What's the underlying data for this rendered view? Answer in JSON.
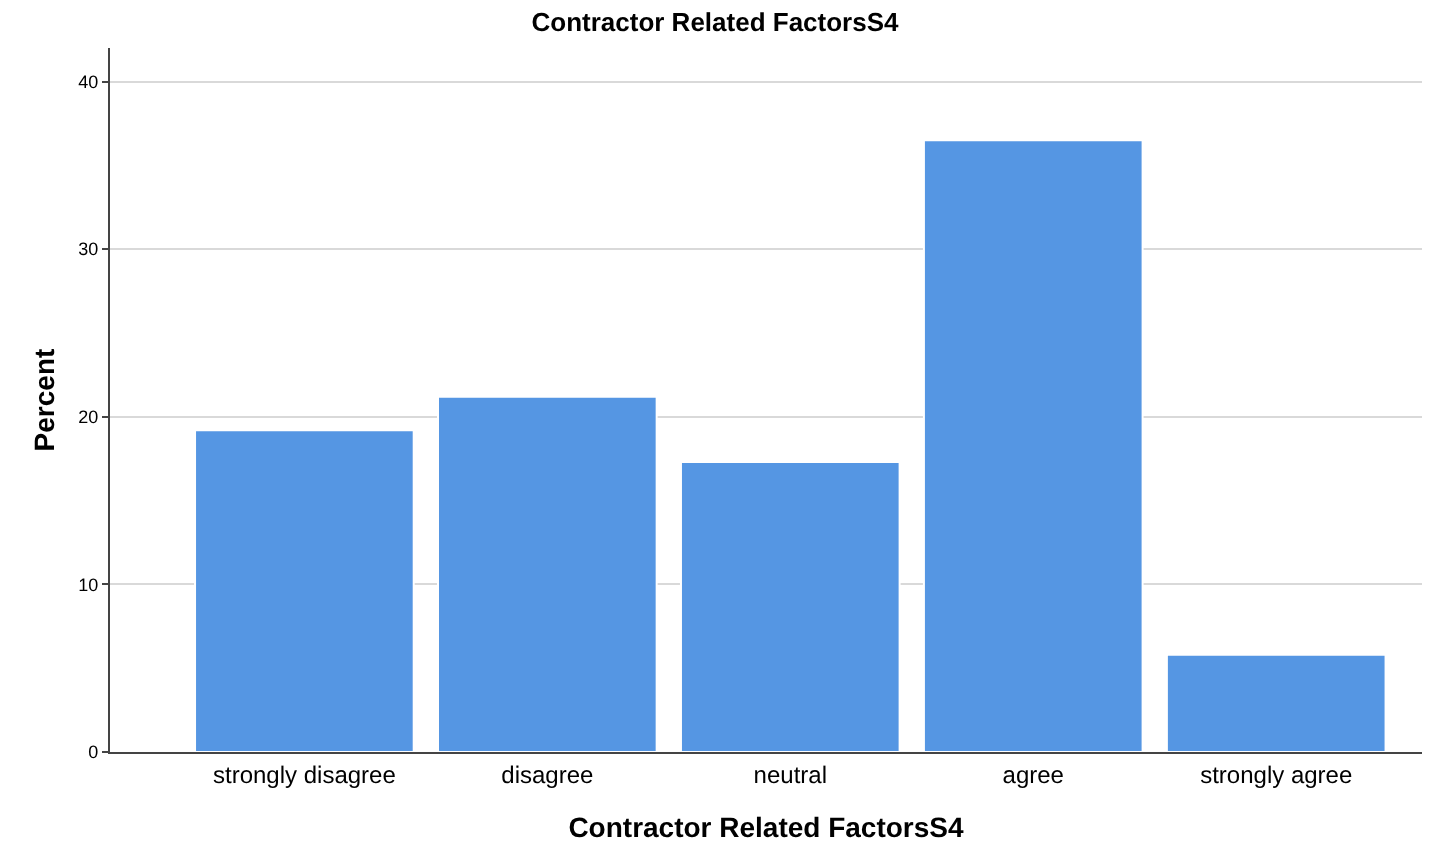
{
  "chart_data": {
    "type": "bar",
    "title": "Contractor Related FactorsS4",
    "xlabel": "Contractor Related FactorsS4",
    "ylabel": "Percent",
    "categories": [
      "strongly disagree",
      "disagree",
      "neutral",
      "agree",
      "strongly agree"
    ],
    "values": [
      19.2,
      21.2,
      17.3,
      36.5,
      5.8
    ],
    "color": "#5596e3",
    "ylim": [
      0,
      42
    ],
    "yticks": [
      0,
      10,
      20,
      30,
      40
    ],
    "grid": "y"
  }
}
